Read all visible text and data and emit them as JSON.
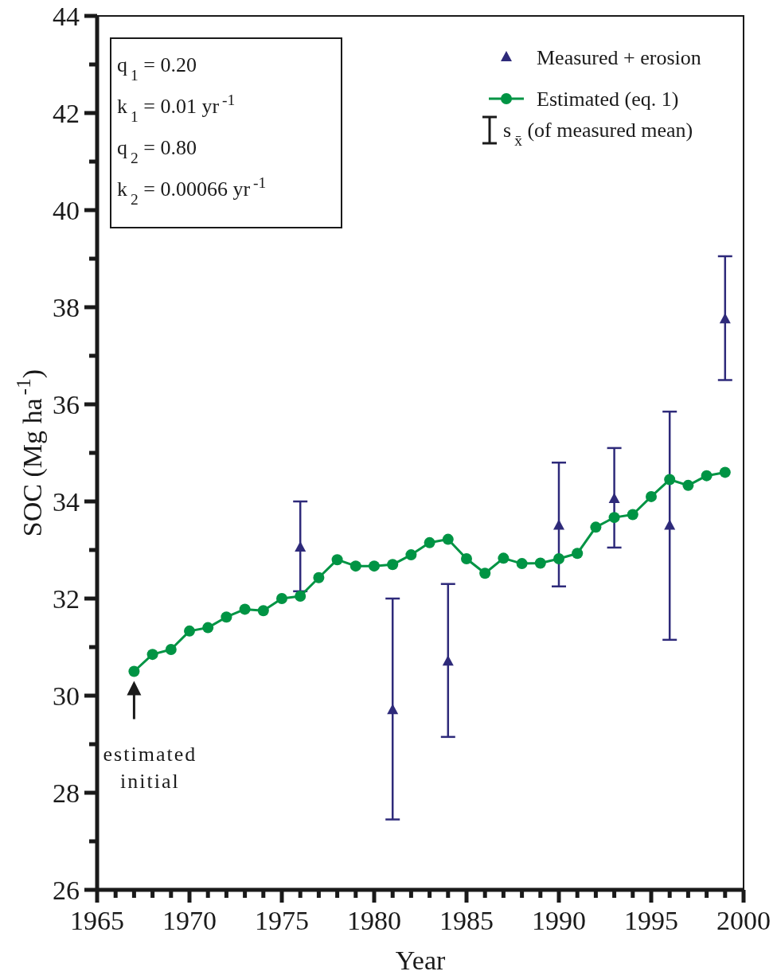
{
  "chart_data": {
    "type": "line",
    "xlabel": "Year",
    "ylabel": "SOC (Mg ha$^{-1}$)",
    "xlim": [
      1965,
      2000
    ],
    "ylim": [
      26,
      44
    ],
    "xticks": [
      1965,
      1970,
      1975,
      1980,
      1985,
      1990,
      1995,
      2000,
      {
        "value": 1966,
        "label": null
      },
      {
        "value": 1967,
        "label": null
      },
      {
        "value": 1968,
        "label": null
      },
      {
        "value": 1969,
        "label": null
      },
      {
        "value": 1971,
        "label": null
      },
      {
        "value": 1972,
        "label": null
      },
      {
        "value": 1973,
        "label": null
      },
      {
        "value": 1974,
        "label": null
      },
      {
        "value": 1976,
        "label": null
      },
      {
        "value": 1977,
        "label": null
      },
      {
        "value": 1978,
        "label": null
      },
      {
        "value": 1979,
        "label": null
      },
      {
        "value": 1981,
        "label": null
      },
      {
        "value": 1982,
        "label": null
      },
      {
        "value": 1983,
        "label": null
      },
      {
        "value": 1984,
        "label": null
      },
      {
        "value": 1986,
        "label": null
      },
      {
        "value": 1987,
        "label": null
      },
      {
        "value": 1988,
        "label": null
      },
      {
        "value": 1989,
        "label": null
      },
      {
        "value": 1991,
        "label": null
      },
      {
        "value": 1992,
        "label": null
      },
      {
        "value": 1993,
        "label": null
      },
      {
        "value": 1994,
        "label": null
      },
      {
        "value": 1996,
        "label": null
      },
      {
        "value": 1997,
        "label": null
      },
      {
        "value": 1998,
        "label": null
      },
      {
        "value": 1999,
        "label": null
      }
    ],
    "yticks": [
      26,
      28,
      30,
      32,
      34,
      36,
      38,
      40,
      42,
      44,
      {
        "value": 27,
        "label": null
      },
      {
        "value": 29,
        "label": null
      },
      {
        "value": 31,
        "label": null
      },
      {
        "value": 33,
        "label": null
      },
      {
        "value": 35,
        "label": null
      },
      {
        "value": 37,
        "label": null
      },
      {
        "value": 39,
        "label": null
      },
      {
        "value": 41,
        "label": null
      },
      {
        "value": 43,
        "label": null
      }
    ],
    "grid": false,
    "legend": "top right",
    "series": [
      {
        "name": "Measured + erosion",
        "type": "scatter",
        "marker": "triangle",
        "color": "#2e2a7a",
        "x": [
          1976,
          1981,
          1984,
          1990,
          1993,
          1996,
          1999
        ],
        "values": [
          33.05,
          29.7,
          30.7,
          33.5,
          34.05,
          33.5,
          37.75
        ],
        "errors": [
          [
            32.15,
            34.0
          ],
          [
            27.45,
            32.0
          ],
          [
            29.15,
            32.3
          ],
          [
            32.25,
            34.8
          ],
          [
            33.05,
            35.1
          ],
          [
            31.15,
            35.85
          ],
          [
            36.5,
            39.05
          ]
        ]
      },
      {
        "name": "Estimated (eq. 1)",
        "marker": "circle",
        "line_style": "solid",
        "color": "#009444",
        "x": [
          1967,
          1968,
          1969,
          1970,
          1971,
          1972,
          1973,
          1974,
          1975,
          1976,
          1977,
          1978,
          1979,
          1980,
          1981,
          1982,
          1983,
          1984,
          1985,
          1986,
          1987,
          1988,
          1989,
          1990,
          1991,
          1992,
          1993,
          1994,
          1995,
          1996,
          1997,
          1998,
          1999
        ],
        "values": [
          30.5,
          30.85,
          30.95,
          31.33,
          31.4,
          31.62,
          31.78,
          31.75,
          32.0,
          32.05,
          32.43,
          32.8,
          32.67,
          32.67,
          32.7,
          32.9,
          33.15,
          33.22,
          32.82,
          32.52,
          32.83,
          32.72,
          32.73,
          32.82,
          32.93,
          33.47,
          33.67,
          33.73,
          34.1,
          34.45,
          34.33,
          34.53,
          34.6
        ]
      }
    ],
    "annotations": [
      "q$_{1}$ = 0.20",
      "k$_{1}$ = 0.01 yr$^{-1}$",
      "q$_{2}$ = 0.80",
      "k$_{2}$ = 0.00066 yr$^{-1}$",
      "s$_{x̄}$ (of measured mean)",
      "estimated initial"
    ]
  }
}
